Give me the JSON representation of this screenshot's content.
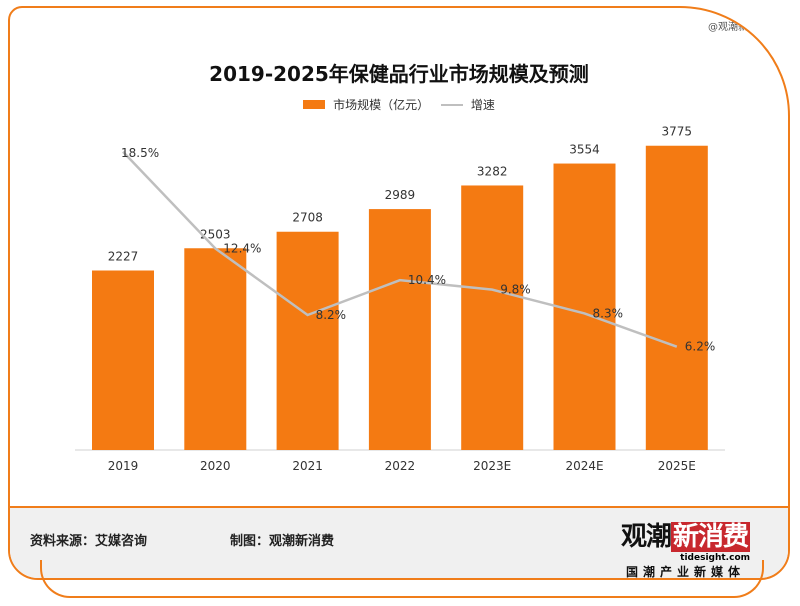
{
  "credit": "@观潮新消费",
  "footer": {
    "source": "资料来源：艾媒咨询",
    "maker": "制图：观潮新消费",
    "logo_main": "观潮",
    "logo_red": "新消费",
    "logo_url": "tidesight.com",
    "logo_sub": "国潮产业新媒体"
  },
  "colors": {
    "bar": "#f47a12",
    "line": "#bfbfbf",
    "frame": "#f07d1a"
  },
  "chart_data": {
    "type": "bar+line",
    "title": "2019-2025年保健品行业市场规模及预测",
    "categories": [
      "2019",
      "2020",
      "2021",
      "2022",
      "2023E",
      "2024E",
      "2025E"
    ],
    "series": [
      {
        "name": "市场规模（亿元）",
        "type": "bar",
        "values": [
          2227,
          2503,
          2708,
          2989,
          3282,
          3554,
          3775
        ],
        "labels": [
          "2227",
          "2503",
          "2708",
          "2989",
          "3282",
          "3554",
          "3775"
        ]
      },
      {
        "name": "增速",
        "type": "line",
        "values": [
          18.5,
          12.4,
          8.2,
          10.4,
          9.8,
          8.3,
          6.2
        ],
        "labels": [
          "18.5%",
          "12.4%",
          "8.2%",
          "10.4%",
          "9.8%",
          "8.3%",
          "6.2%"
        ]
      }
    ],
    "legend": "top",
    "grid": false
  }
}
